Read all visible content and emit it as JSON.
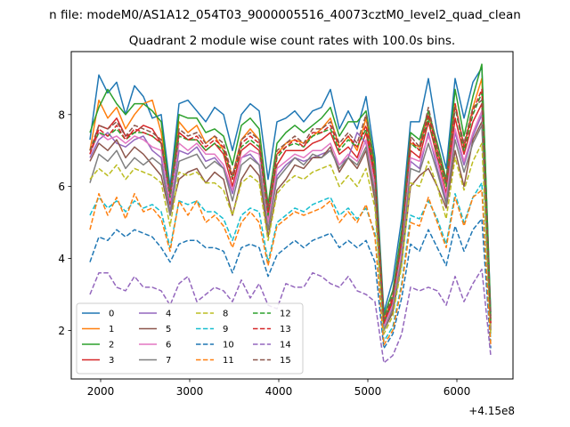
{
  "chart_data": {
    "type": "line",
    "suptitle": "n file: modeM0/AS1A12_054T03_9000005516_40073cztM0_level2_quad_clean",
    "title": "Quadrant 2 module wise count rates with 100.0s bins.",
    "xlabel": "",
    "ylabel": "",
    "x_offset_label": "+4.15e8",
    "xlim": [
      1670,
      6630
    ],
    "ylim": [
      0.65,
      9.75
    ],
    "xticks": [
      2000,
      3000,
      4000,
      5000,
      6000
    ],
    "xtick_labels": [
      "2000",
      "3000",
      "4000",
      "5000",
      "6000"
    ],
    "yticks": [
      2,
      4,
      6,
      8
    ],
    "ytick_labels": [
      "2",
      "4",
      "6",
      "8"
    ],
    "grid": false,
    "legend_position": "lower-left",
    "legend_columns": 4,
    "x": [
      1880,
      1980,
      2080,
      2180,
      2280,
      2380,
      2480,
      2580,
      2680,
      2780,
      2880,
      2980,
      3080,
      3180,
      3280,
      3380,
      3480,
      3580,
      3680,
      3780,
      3880,
      3980,
      4080,
      4180,
      4280,
      4380,
      4480,
      4580,
      4680,
      4780,
      4880,
      4980,
      5080,
      5180,
      5280,
      5380,
      5480,
      5580,
      5680,
      5780,
      5880,
      5980,
      6080,
      6180,
      6280,
      6380
    ],
    "series": [
      {
        "name": "0",
        "color": "#1f77b4",
        "dash": "solid",
        "values": [
          7.3,
          9.1,
          8.6,
          8.9,
          8.0,
          8.8,
          8.5,
          7.9,
          8.0,
          6.0,
          8.3,
          8.4,
          8.1,
          7.8,
          8.2,
          8.0,
          7.0,
          8.0,
          8.3,
          8.1,
          6.2,
          7.8,
          7.9,
          8.1,
          7.8,
          8.1,
          8.2,
          8.7,
          7.6,
          8.1,
          7.6,
          8.5,
          6.8,
          2.5,
          3.4,
          5.1,
          7.8,
          7.8,
          9.0,
          7.5,
          6.5,
          9.0,
          7.9,
          8.9,
          9.3,
          2.5
        ]
      },
      {
        "name": "1",
        "color": "#ff7f0e",
        "dash": "solid",
        "values": [
          7.0,
          8.4,
          7.9,
          8.2,
          7.6,
          8.0,
          8.3,
          8.4,
          7.5,
          5.7,
          7.8,
          7.5,
          7.7,
          7.2,
          7.4,
          7.0,
          6.3,
          7.3,
          7.6,
          7.3,
          5.2,
          6.9,
          7.2,
          7.3,
          7.2,
          7.4,
          7.6,
          7.9,
          7.1,
          7.4,
          7.0,
          7.9,
          6.4,
          2.3,
          2.9,
          4.6,
          7.2,
          7.1,
          8.1,
          7.0,
          6.0,
          8.3,
          7.1,
          8.2,
          9.0,
          2.3
        ]
      },
      {
        "name": "2",
        "color": "#2ca02c",
        "dash": "solid",
        "values": [
          7.5,
          8.2,
          8.7,
          8.3,
          8.0,
          8.3,
          8.3,
          8.1,
          7.8,
          5.8,
          8.0,
          7.9,
          7.9,
          7.5,
          7.6,
          7.4,
          6.6,
          7.7,
          7.9,
          7.6,
          5.5,
          7.2,
          7.5,
          7.7,
          7.5,
          7.7,
          7.9,
          8.2,
          7.4,
          7.8,
          7.8,
          8.1,
          6.6,
          2.4,
          3.1,
          4.8,
          7.5,
          7.3,
          8.1,
          7.2,
          6.2,
          8.7,
          7.4,
          8.5,
          9.4,
          2.4
        ]
      },
      {
        "name": "3",
        "color": "#d62728",
        "dash": "solid",
        "values": [
          6.9,
          7.7,
          7.6,
          7.9,
          7.4,
          7.5,
          7.7,
          7.6,
          7.2,
          5.5,
          7.5,
          7.3,
          7.3,
          7.0,
          7.2,
          6.9,
          6.0,
          7.0,
          7.2,
          7.0,
          5.1,
          6.6,
          7.0,
          7.0,
          7.0,
          7.2,
          7.3,
          7.5,
          6.9,
          7.1,
          6.8,
          7.5,
          6.2,
          2.2,
          2.8,
          4.4,
          7.0,
          6.8,
          7.8,
          6.8,
          5.8,
          7.9,
          6.9,
          7.8,
          8.3,
          2.2
        ]
      },
      {
        "name": "4",
        "color": "#9467bd",
        "dash": "solid",
        "values": [
          6.8,
          7.3,
          7.5,
          7.2,
          7.1,
          7.3,
          7.4,
          7.0,
          6.8,
          5.3,
          7.0,
          6.9,
          7.1,
          6.7,
          6.8,
          6.5,
          5.8,
          6.8,
          6.9,
          6.6,
          4.8,
          6.3,
          6.6,
          6.8,
          6.7,
          6.8,
          6.9,
          7.0,
          6.6,
          6.8,
          7.5,
          7.2,
          5.9,
          2.1,
          2.7,
          4.2,
          6.7,
          6.5,
          7.5,
          6.5,
          5.6,
          7.5,
          6.6,
          7.4,
          8.0,
          2.1
        ]
      },
      {
        "name": "5",
        "color": "#8c564b",
        "dash": "solid",
        "values": [
          6.7,
          7.2,
          7.0,
          7.3,
          6.8,
          7.1,
          6.9,
          6.6,
          6.3,
          5.2,
          6.2,
          6.4,
          6.5,
          6.1,
          6.4,
          6.2,
          5.2,
          6.2,
          6.6,
          6.3,
          4.6,
          5.9,
          6.2,
          6.6,
          6.5,
          6.8,
          6.8,
          7.1,
          6.4,
          6.8,
          6.5,
          7.0,
          5.6,
          2.0,
          2.5,
          3.9,
          6.0,
          6.3,
          6.5,
          6.0,
          5.4,
          7.0,
          6.0,
          7.3,
          7.8,
          2.0
        ]
      },
      {
        "name": "6",
        "color": "#e377c2",
        "dash": "solid",
        "values": [
          6.9,
          7.5,
          7.3,
          7.4,
          7.2,
          7.4,
          7.3,
          7.1,
          7.0,
          5.6,
          7.2,
          7.0,
          7.2,
          6.9,
          6.9,
          6.6,
          5.9,
          6.8,
          7.0,
          6.9,
          5.0,
          6.5,
          6.7,
          6.9,
          6.8,
          7.0,
          7.0,
          7.2,
          6.6,
          6.9,
          6.7,
          7.3,
          6.0,
          2.1,
          2.7,
          4.2,
          6.8,
          6.7,
          7.4,
          6.7,
          5.7,
          7.6,
          6.7,
          7.5,
          8.1,
          2.1
        ]
      },
      {
        "name": "7",
        "color": "#7f7f7f",
        "dash": "solid",
        "values": [
          6.1,
          6.9,
          6.7,
          7.0,
          6.5,
          6.8,
          6.6,
          6.8,
          6.6,
          5.2,
          6.7,
          6.8,
          6.9,
          6.5,
          6.7,
          6.5,
          5.6,
          6.6,
          6.8,
          6.6,
          4.8,
          6.2,
          6.5,
          6.8,
          6.6,
          6.9,
          6.8,
          7.0,
          6.5,
          6.8,
          6.6,
          7.1,
          5.8,
          2.0,
          2.6,
          4.0,
          6.5,
          6.4,
          7.2,
          6.4,
          5.5,
          7.3,
          6.4,
          7.2,
          7.7,
          2.0
        ]
      },
      {
        "name": "8",
        "color": "#bcbd22",
        "dash": "dashed",
        "values": [
          6.2,
          6.5,
          6.3,
          6.6,
          6.2,
          6.5,
          6.4,
          6.3,
          6.1,
          4.9,
          6.4,
          6.3,
          6.4,
          6.1,
          6.1,
          5.9,
          5.2,
          6.1,
          6.3,
          6.1,
          4.5,
          5.8,
          6.1,
          6.3,
          6.2,
          6.4,
          6.5,
          6.6,
          6.0,
          6.3,
          6.0,
          6.5,
          5.4,
          1.9,
          2.4,
          3.8,
          6.1,
          6.0,
          6.7,
          6.0,
          5.1,
          6.8,
          5.9,
          6.7,
          7.2,
          1.9
        ]
      },
      {
        "name": "9",
        "color": "#17becf",
        "dash": "dashed",
        "values": [
          5.2,
          5.7,
          5.4,
          5.6,
          5.3,
          5.6,
          5.4,
          5.5,
          5.3,
          4.3,
          5.6,
          5.5,
          5.6,
          5.3,
          5.3,
          5.1,
          4.5,
          5.2,
          5.4,
          5.3,
          3.9,
          5.0,
          5.2,
          5.4,
          5.3,
          5.5,
          5.6,
          5.7,
          5.2,
          5.4,
          5.1,
          5.4,
          4.7,
          1.7,
          2.1,
          3.3,
          5.2,
          5.1,
          5.6,
          5.1,
          4.4,
          5.8,
          5.0,
          5.7,
          6.1,
          1.7
        ]
      },
      {
        "name": "10",
        "color": "#1f77b4",
        "dash": "dashed",
        "values": [
          3.9,
          4.6,
          4.5,
          4.8,
          4.6,
          4.8,
          4.7,
          4.6,
          4.3,
          3.9,
          4.4,
          4.5,
          4.5,
          4.3,
          4.3,
          4.2,
          3.6,
          4.3,
          4.4,
          4.3,
          3.5,
          4.1,
          4.3,
          4.5,
          4.3,
          4.5,
          4.6,
          4.7,
          4.3,
          4.5,
          4.3,
          4.5,
          3.9,
          1.5,
          1.9,
          2.9,
          4.4,
          4.2,
          4.8,
          4.3,
          3.8,
          4.9,
          4.2,
          4.8,
          5.1,
          1.5
        ]
      },
      {
        "name": "11",
        "color": "#ff7f0e",
        "dash": "dashed",
        "values": [
          4.8,
          5.8,
          5.2,
          5.7,
          5.1,
          5.8,
          5.3,
          5.4,
          5.1,
          4.2,
          5.6,
          5.2,
          5.6,
          5.0,
          5.2,
          4.9,
          4.3,
          5.0,
          5.3,
          5.0,
          3.8,
          4.9,
          5.1,
          5.3,
          5.2,
          5.3,
          5.4,
          5.6,
          5.0,
          5.3,
          5.0,
          5.5,
          4.6,
          1.6,
          2.0,
          3.2,
          5.0,
          4.9,
          5.7,
          5.0,
          4.3,
          5.7,
          4.9,
          5.7,
          5.9,
          1.6
        ]
      },
      {
        "name": "12",
        "color": "#2ca02c",
        "dash": "dashed",
        "values": [
          7.0,
          7.5,
          7.4,
          7.6,
          7.3,
          7.5,
          7.5,
          7.4,
          7.2,
          5.7,
          7.4,
          7.3,
          7.3,
          7.0,
          7.2,
          7.0,
          6.2,
          7.1,
          7.3,
          7.1,
          5.2,
          6.8,
          7.1,
          7.2,
          7.1,
          7.4,
          7.5,
          7.6,
          7.0,
          7.3,
          7.1,
          7.6,
          6.3,
          2.2,
          2.9,
          4.5,
          7.2,
          7.0,
          7.9,
          6.9,
          6.0,
          8.2,
          7.0,
          8.0,
          8.6,
          2.2
        ]
      },
      {
        "name": "13",
        "color": "#d62728",
        "dash": "dashed",
        "values": [
          6.9,
          7.6,
          7.4,
          7.7,
          7.3,
          7.6,
          7.5,
          7.4,
          7.2,
          5.8,
          7.5,
          7.3,
          7.4,
          7.1,
          7.3,
          7.1,
          6.2,
          7.2,
          7.4,
          7.2,
          5.3,
          6.9,
          7.1,
          7.3,
          7.1,
          7.5,
          7.5,
          7.7,
          7.1,
          7.4,
          7.1,
          7.7,
          6.3,
          2.2,
          2.9,
          4.5,
          7.3,
          7.0,
          8.0,
          7.0,
          6.1,
          8.3,
          7.1,
          8.1,
          8.7,
          2.2
        ]
      },
      {
        "name": "14",
        "color": "#9467bd",
        "dash": "dashed",
        "values": [
          3.0,
          3.6,
          3.6,
          3.2,
          3.1,
          3.5,
          3.2,
          3.2,
          3.1,
          2.7,
          3.3,
          3.5,
          2.8,
          3.0,
          3.2,
          3.1,
          2.8,
          3.4,
          2.9,
          3.3,
          2.7,
          2.6,
          3.3,
          3.2,
          3.2,
          3.6,
          3.5,
          3.3,
          3.2,
          3.5,
          3.1,
          3.0,
          2.8,
          1.1,
          1.3,
          1.9,
          3.2,
          3.1,
          3.2,
          3.1,
          2.7,
          3.5,
          2.8,
          3.3,
          3.7,
          1.3
        ]
      },
      {
        "name": "15",
        "color": "#8c564b",
        "dash": "dashed",
        "values": [
          7.0,
          7.7,
          7.6,
          7.8,
          7.4,
          7.7,
          7.6,
          7.5,
          7.3,
          5.8,
          7.6,
          7.4,
          7.5,
          7.2,
          7.4,
          7.2,
          6.3,
          7.3,
          7.5,
          7.3,
          5.4,
          7.0,
          7.2,
          7.4,
          7.2,
          7.6,
          7.6,
          7.8,
          7.2,
          7.5,
          7.2,
          8.0,
          6.4,
          2.3,
          3.0,
          4.6,
          7.4,
          7.1,
          8.2,
          7.1,
          6.1,
          8.2,
          7.2,
          8.2,
          8.4,
          2.3
        ]
      }
    ]
  }
}
